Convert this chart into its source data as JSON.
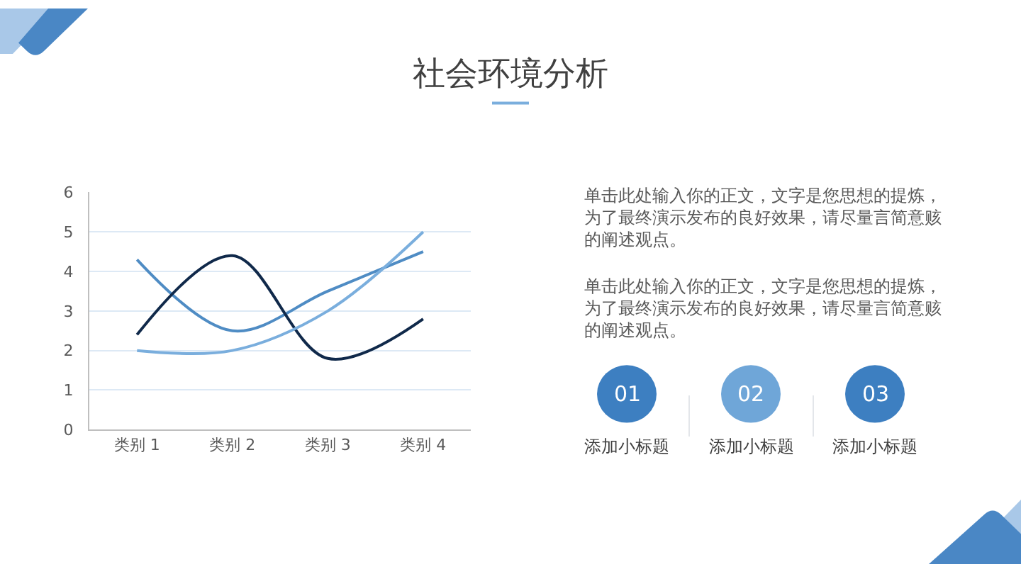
{
  "chart_data": [
    {
      "type": "line",
      "title": "社会环境分析",
      "categories": [
        "类别 1",
        "类别 2",
        "类别 3",
        "类别 4"
      ],
      "series": [
        {
          "color": "#4f8cc4",
          "values": [
            4.3,
            2.5,
            3.5,
            4.5
          ]
        },
        {
          "color": "#10294a",
          "values": [
            2.4,
            4.4,
            1.8,
            2.8
          ]
        },
        {
          "color": "#7aaedd",
          "values": [
            2,
            2,
            3,
            5
          ]
        }
      ],
      "ylim": [
        0,
        6
      ],
      "yticks": [
        0,
        1,
        2,
        3,
        4,
        5,
        6
      ],
      "grid": "y",
      "marker": "none",
      "line_style": "solid"
    },
    {
      "type": "other",
      "annotations": [
        "单击此处输入你的正文，文字是您思想的提炼，为了最终演示发布的良好效果，请尽量言简意赅的阐述观点。",
        "单击此处输入你的正文，文字是您思想的提炼，为了最终演示发布的良好效果，请尽量言简意赅的阐述观点。",
        "01",
        "添加小标题",
        "02",
        "添加小标题",
        "03",
        "添加小标题"
      ]
    }
  ]
}
